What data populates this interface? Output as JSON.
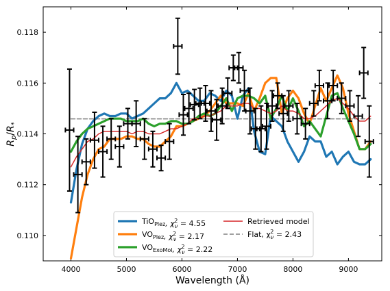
{
  "chart_data": {
    "type": "line",
    "xlabel": "Wavelength (Å)",
    "ylabel": "R_p/R_*",
    "xlim": [
      3500,
      9600
    ],
    "ylim": [
      0.109,
      0.119
    ],
    "xticks": [
      4000,
      5000,
      6000,
      7000,
      8000,
      9000
    ],
    "xtick_labels": [
      "4000",
      "5000",
      "6000",
      "7000",
      "8000",
      "9000"
    ],
    "yticks": [
      0.11,
      0.112,
      0.114,
      0.116,
      0.118
    ],
    "ytick_labels": [
      "0.110",
      "0.112",
      "0.114",
      "0.116",
      "0.118"
    ],
    "grid": false,
    "legend_position": "bottom-center",
    "series": [
      {
        "name": "TiO_Plez, χ²_ν = 4.55",
        "legend_main": "TiO",
        "legend_sub": "Plez",
        "legend_stat": ", χ",
        "legend_val": " = 4.55",
        "color": "#1f77b4",
        "x": [
          4000,
          4100,
          4200,
          4300,
          4400,
          4500,
          4600,
          4700,
          4800,
          4900,
          5000,
          5100,
          5200,
          5300,
          5400,
          5500,
          5600,
          5700,
          5800,
          5900,
          6000,
          6100,
          6200,
          6300,
          6400,
          6500,
          6600,
          6700,
          6800,
          6900,
          7000,
          7100,
          7200,
          7300,
          7400,
          7500,
          7600,
          7700,
          7800,
          7900,
          8000,
          8100,
          8200,
          8300,
          8400,
          8500,
          8600,
          8700,
          8800,
          8900,
          9000,
          9100,
          9200,
          9300,
          9400
        ],
        "y": [
          0.1113,
          0.1126,
          0.1136,
          0.1142,
          0.1145,
          0.1147,
          0.1148,
          0.1147,
          0.1147,
          0.1148,
          0.1148,
          0.1146,
          0.1147,
          0.1148,
          0.115,
          0.1152,
          0.1154,
          0.1154,
          0.1156,
          0.116,
          0.1156,
          0.1157,
          0.1155,
          0.1153,
          0.1153,
          0.1156,
          0.1155,
          0.1153,
          0.1157,
          0.1155,
          0.1146,
          0.1155,
          0.1158,
          0.1141,
          0.1133,
          0.1132,
          0.1147,
          0.1145,
          0.1143,
          0.1137,
          0.1133,
          0.1129,
          0.1133,
          0.1139,
          0.1137,
          0.1137,
          0.1131,
          0.1133,
          0.1128,
          0.1131,
          0.1133,
          0.1129,
          0.1128,
          0.1128,
          0.113
        ]
      },
      {
        "name": "VO_Plez, χ²_ν = 2.17",
        "legend_main": "VO",
        "legend_sub": "Plez",
        "legend_stat": ", χ",
        "legend_val": " = 2.17",
        "color": "#ff7f0e",
        "x": [
          4000,
          4100,
          4200,
          4300,
          4400,
          4500,
          4600,
          4700,
          4800,
          4900,
          5000,
          5100,
          5200,
          5300,
          5400,
          5500,
          5600,
          5700,
          5800,
          5900,
          6000,
          6100,
          6200,
          6300,
          6400,
          6500,
          6600,
          6700,
          6800,
          6900,
          7000,
          7100,
          7200,
          7300,
          7400,
          7500,
          7600,
          7700,
          7800,
          7900,
          8000,
          8100,
          8200,
          8300,
          8400,
          8500,
          8600,
          8700,
          8800,
          8900,
          9000,
          9100,
          9200,
          9300,
          9400
        ],
        "y": [
          0.1091,
          0.1103,
          0.1115,
          0.1124,
          0.113,
          0.1134,
          0.1135,
          0.1138,
          0.1138,
          0.1138,
          0.1139,
          0.1139,
          0.1138,
          0.1138,
          0.1136,
          0.1135,
          0.1135,
          0.1137,
          0.1139,
          0.1143,
          0.1143,
          0.1144,
          0.1145,
          0.1146,
          0.1147,
          0.1149,
          0.1152,
          0.1155,
          0.1152,
          0.1152,
          0.1152,
          0.1151,
          0.1156,
          0.1149,
          0.1154,
          0.116,
          0.1162,
          0.1162,
          0.1148,
          0.1154,
          0.1157,
          0.1154,
          0.1148,
          0.1144,
          0.1151,
          0.1158,
          0.1153,
          0.1158,
          0.1163,
          0.1158,
          0.1148,
          0.1141,
          0.1134,
          0.1134,
          0.1137
        ]
      },
      {
        "name": "VO_ExoMol, χ²_ν = 2.22",
        "legend_main": "VO",
        "legend_sub": "ExoMol",
        "legend_stat": ", χ",
        "legend_val": " = 2.22",
        "color": "#2ca02c",
        "x": [
          4000,
          4100,
          4200,
          4300,
          4400,
          4500,
          4600,
          4700,
          4800,
          4900,
          5000,
          5100,
          5200,
          5300,
          5400,
          5500,
          5600,
          5700,
          5800,
          5900,
          6000,
          6100,
          6200,
          6300,
          6400,
          6500,
          6600,
          6700,
          6800,
          6900,
          7000,
          7100,
          7200,
          7300,
          7400,
          7500,
          7600,
          7700,
          7800,
          7900,
          8000,
          8100,
          8200,
          8300,
          8400,
          8500,
          8600,
          8700,
          8800,
          8900,
          9000,
          9100,
          9200,
          9300,
          9400
        ],
        "y": [
          0.1133,
          0.1137,
          0.114,
          0.1142,
          0.1143,
          0.1144,
          0.1145,
          0.1146,
          0.1146,
          0.1146,
          0.1145,
          0.1145,
          0.1145,
          0.1146,
          0.1144,
          0.1143,
          0.1144,
          0.1144,
          0.1145,
          0.1145,
          0.1144,
          0.1144,
          0.1145,
          0.1147,
          0.1148,
          0.1147,
          0.1148,
          0.1151,
          0.1154,
          0.1149,
          0.1154,
          0.1155,
          0.1155,
          0.1154,
          0.1152,
          0.1155,
          0.1146,
          0.115,
          0.1155,
          0.1149,
          0.1154,
          0.1149,
          0.1143,
          0.1145,
          0.1142,
          0.1139,
          0.1147,
          0.1155,
          0.1156,
          0.115,
          0.1145,
          0.114,
          0.1134,
          0.1134,
          0.1136
        ]
      },
      {
        "name": "Retrieved model",
        "legend_main": "Retrieved model",
        "color": "#d62728",
        "x": [
          4000,
          4100,
          4200,
          4300,
          4400,
          4500,
          4600,
          4700,
          4800,
          4900,
          5000,
          5100,
          5200,
          5300,
          5400,
          5500,
          5600,
          5700,
          5800,
          5900,
          6000,
          6100,
          6200,
          6300,
          6400,
          6500,
          6600,
          6700,
          6800,
          6900,
          7000,
          7100,
          7200,
          7300,
          7400,
          7500,
          7600,
          7700,
          7800,
          7900,
          8000,
          8100,
          8200,
          8300,
          8400,
          8500,
          8600,
          8700,
          8800,
          8900,
          9000,
          9100,
          9200,
          9300,
          9400
        ],
        "y": [
          0.1127,
          0.1131,
          0.1134,
          0.1137,
          0.1138,
          0.114,
          0.1141,
          0.1141,
          0.1141,
          0.1141,
          0.1141,
          0.114,
          0.1141,
          0.1141,
          0.114,
          0.114,
          0.114,
          0.1141,
          0.1142,
          0.1142,
          0.1143,
          0.1144,
          0.1146,
          0.1146,
          0.1147,
          0.1147,
          0.1148,
          0.1149,
          0.1151,
          0.1151,
          0.1151,
          0.1152,
          0.1152,
          0.115,
          0.115,
          0.1149,
          0.1148,
          0.1149,
          0.1151,
          0.1149,
          0.1149,
          0.1148,
          0.1146,
          0.1146,
          0.1147,
          0.1149,
          0.1151,
          0.1153,
          0.1154,
          0.1152,
          0.115,
          0.1147,
          0.1145,
          0.1145,
          0.1147
        ]
      },
      {
        "name": "Flat, χ²_ν = 2.43",
        "legend_main": "Flat, χ",
        "legend_val": " = 2.43",
        "color": "#808080",
        "dashed": true,
        "x": [
          4000,
          9400
        ],
        "y": [
          0.11459,
          0.11459
        ]
      }
    ],
    "data_points": {
      "x": [
        3975,
        4125,
        4275,
        4425,
        4575,
        4725,
        4875,
        5025,
        5175,
        5325,
        5475,
        5625,
        5775,
        5925,
        6025,
        6125,
        6225,
        6325,
        6425,
        6525,
        6625,
        6725,
        6825,
        6925,
        7025,
        7125,
        7225,
        7325,
        7425,
        7525,
        7625,
        7725,
        7825,
        7925,
        8075,
        8225,
        8375,
        8475,
        8625,
        8725,
        8875,
        9025,
        9175,
        9275,
        9375
      ],
      "y": [
        0.11415,
        0.1124,
        0.1129,
        0.11375,
        0.1133,
        0.1138,
        0.1135,
        0.1144,
        0.1144,
        0.1138,
        0.1134,
        0.11305,
        0.1137,
        0.11745,
        0.11475,
        0.115,
        0.11515,
        0.1152,
        0.1152,
        0.1149,
        0.11455,
        0.1151,
        0.1156,
        0.1166,
        0.1166,
        0.1157,
        0.1149,
        0.1142,
        0.1142,
        0.1143,
        0.1151,
        0.1155,
        0.1148,
        0.1151,
        0.1146,
        0.1144,
        0.1152,
        0.1159,
        0.1153,
        0.1159,
        0.1154,
        0.1151,
        0.1147,
        0.1164,
        0.1137
      ],
      "yerr": [
        0.0024,
        0.0015,
        0.0009,
        0.0011,
        0.001,
        0.0008,
        0.0008,
        0.0006,
        0.0009,
        0.0008,
        0.0007,
        0.0005,
        0.0007,
        0.0011,
        0.0008,
        0.0006,
        0.0006,
        0.0006,
        0.0007,
        0.0008,
        0.0008,
        0.0007,
        0.0006,
        0.0005,
        0.0006,
        0.0008,
        0.0009,
        0.0008,
        0.0009,
        0.0009,
        0.0006,
        0.0005,
        0.0007,
        0.0006,
        0.0006,
        0.0006,
        0.0005,
        0.0006,
        0.0007,
        0.0006,
        0.0006,
        0.0006,
        0.0008,
        0.001,
        0.0014
      ],
      "xerr": 75,
      "color": "#000000"
    }
  }
}
